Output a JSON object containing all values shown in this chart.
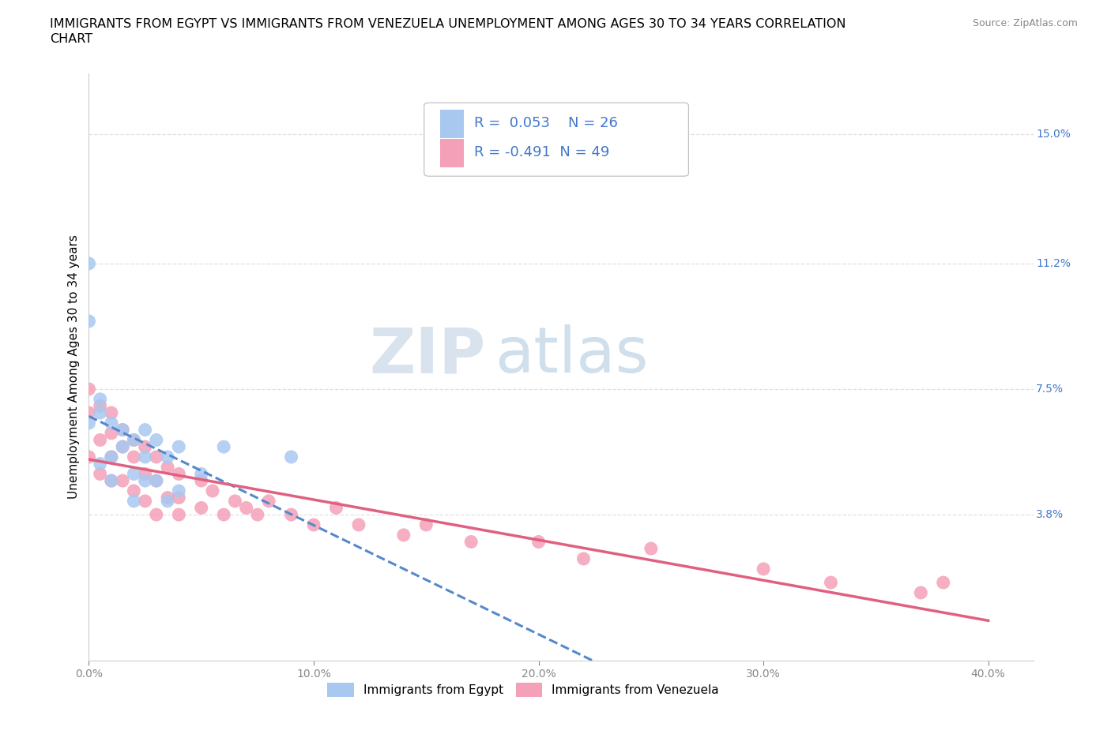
{
  "title_line1": "IMMIGRANTS FROM EGYPT VS IMMIGRANTS FROM VENEZUELA UNEMPLOYMENT AMONG AGES 30 TO 34 YEARS CORRELATION",
  "title_line2": "CHART",
  "source": "Source: ZipAtlas.com",
  "ylabel": "Unemployment Among Ages 30 to 34 years",
  "xlim": [
    0.0,
    0.42
  ],
  "ylim": [
    -0.005,
    0.168
  ],
  "xticks": [
    0.0,
    0.1,
    0.2,
    0.3,
    0.4
  ],
  "xticklabels": [
    "0.0%",
    "10.0%",
    "20.0%",
    "30.0%",
    "40.0%"
  ],
  "ytick_right_labels": [
    "15.0%",
    "11.2%",
    "7.5%",
    "3.8%"
  ],
  "ytick_right_vals": [
    0.15,
    0.112,
    0.075,
    0.038
  ],
  "grid_color": "#e0e0e0",
  "background_color": "#ffffff",
  "egypt_color": "#a8c8f0",
  "venezuela_color": "#f4a0b8",
  "egypt_R": 0.053,
  "egypt_N": 26,
  "venezuela_R": -0.491,
  "venezuela_N": 49,
  "egypt_scatter_x": [
    0.0,
    0.0,
    0.0,
    0.005,
    0.005,
    0.01,
    0.01,
    0.015,
    0.015,
    0.02,
    0.02,
    0.025,
    0.025,
    0.03,
    0.03,
    0.035,
    0.04,
    0.005,
    0.01,
    0.02,
    0.025,
    0.035,
    0.04,
    0.05,
    0.06,
    0.09
  ],
  "egypt_scatter_y": [
    0.112,
    0.095,
    0.065,
    0.068,
    0.072,
    0.065,
    0.055,
    0.063,
    0.058,
    0.06,
    0.05,
    0.063,
    0.055,
    0.06,
    0.048,
    0.055,
    0.058,
    0.053,
    0.048,
    0.042,
    0.048,
    0.042,
    0.045,
    0.05,
    0.058,
    0.055
  ],
  "venezuela_scatter_x": [
    0.0,
    0.0,
    0.0,
    0.005,
    0.005,
    0.005,
    0.01,
    0.01,
    0.01,
    0.01,
    0.015,
    0.015,
    0.015,
    0.02,
    0.02,
    0.02,
    0.025,
    0.025,
    0.025,
    0.03,
    0.03,
    0.03,
    0.035,
    0.035,
    0.04,
    0.04,
    0.04,
    0.05,
    0.05,
    0.055,
    0.06,
    0.065,
    0.07,
    0.075,
    0.08,
    0.09,
    0.1,
    0.11,
    0.12,
    0.14,
    0.15,
    0.17,
    0.2,
    0.22,
    0.25,
    0.3,
    0.33,
    0.37,
    0.38
  ],
  "venezuela_scatter_y": [
    0.075,
    0.068,
    0.055,
    0.07,
    0.06,
    0.05,
    0.068,
    0.062,
    0.055,
    0.048,
    0.063,
    0.058,
    0.048,
    0.06,
    0.055,
    0.045,
    0.058,
    0.05,
    0.042,
    0.055,
    0.048,
    0.038,
    0.052,
    0.043,
    0.05,
    0.043,
    0.038,
    0.048,
    0.04,
    0.045,
    0.038,
    0.042,
    0.04,
    0.038,
    0.042,
    0.038,
    0.035,
    0.04,
    0.035,
    0.032,
    0.035,
    0.03,
    0.03,
    0.025,
    0.028,
    0.022,
    0.018,
    0.015,
    0.018
  ],
  "egypt_line_color": "#5588cc",
  "egypt_line_style": "--",
  "venezuela_line_color": "#e06080",
  "venezuela_line_style": "-",
  "legend_egypt_color": "#a8c8f0",
  "legend_venezuela_color": "#f4a0b8",
  "legend_text_color": "#4477cc",
  "watermark_zip": "ZIP",
  "watermark_atlas": "atlas",
  "title_fontsize": 11.5,
  "axis_label_fontsize": 11,
  "tick_fontsize": 10,
  "legend_fontsize": 13
}
